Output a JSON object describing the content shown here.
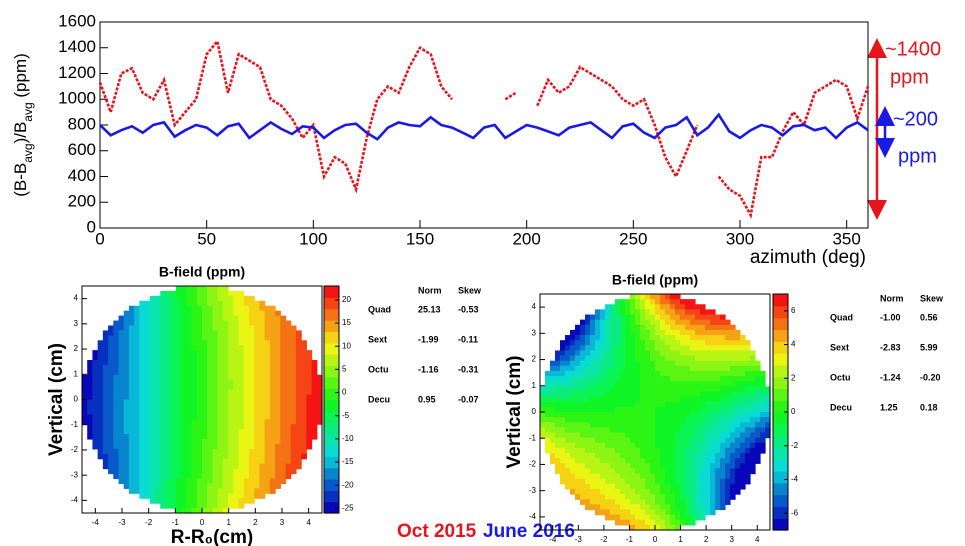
{
  "chart_data": [
    {
      "type": "line",
      "y_label_parts": [
        "(B-B",
        "avg",
        ")/B",
        "avg",
        " (ppm)"
      ],
      "x_label": "azimuth (deg)",
      "x": [
        0,
        5,
        10,
        15,
        20,
        25,
        30,
        35,
        40,
        45,
        50,
        55,
        60,
        65,
        70,
        75,
        80,
        85,
        90,
        95,
        100,
        105,
        110,
        115,
        120,
        125,
        130,
        135,
        140,
        145,
        150,
        155,
        160,
        165,
        170,
        175,
        180,
        185,
        190,
        195,
        200,
        205,
        210,
        215,
        220,
        225,
        230,
        235,
        240,
        245,
        250,
        255,
        260,
        265,
        270,
        275,
        280,
        285,
        290,
        295,
        300,
        305,
        310,
        315,
        320,
        325,
        330,
        335,
        340,
        345,
        350,
        355,
        360
      ],
      "xlim": [
        0,
        360
      ],
      "xticks": [
        0,
        50,
        100,
        150,
        200,
        250,
        300,
        350
      ],
      "ylim": [
        0,
        1600
      ],
      "yticks": [
        0,
        200,
        400,
        600,
        800,
        1000,
        1200,
        1400,
        1600
      ],
      "series": [
        {
          "name": "Oct 2015",
          "color": "#e8141c",
          "values": [
            1130,
            900,
            1200,
            1240,
            1050,
            1000,
            1150,
            800,
            900,
            1000,
            1350,
            1450,
            1050,
            1350,
            1300,
            1250,
            1000,
            950,
            850,
            700,
            800,
            400,
            550,
            500,
            300,
            700,
            1000,
            1100,
            1050,
            1250,
            1400,
            1350,
            1100,
            1000,
            null,
            null,
            null,
            null,
            1000,
            1050,
            null,
            950,
            1150,
            1050,
            1100,
            1250,
            1200,
            1150,
            1100,
            1000,
            950,
            1000,
            800,
            550,
            400,
            600,
            800,
            null,
            400,
            300,
            250,
            100,
            550,
            550,
            750,
            900,
            800,
            1050,
            1100,
            1150,
            1100,
            850,
            1100
          ]
        },
        {
          "name": "June 2016",
          "color": "#1a1ae6",
          "values": [
            800,
            720,
            760,
            790,
            740,
            800,
            820,
            710,
            760,
            800,
            780,
            720,
            790,
            810,
            700,
            760,
            820,
            770,
            730,
            790,
            780,
            700,
            760,
            800,
            810,
            740,
            690,
            780,
            820,
            800,
            790,
            860,
            800,
            780,
            740,
            700,
            780,
            800,
            700,
            750,
            800,
            780,
            750,
            720,
            780,
            800,
            820,
            760,
            700,
            790,
            810,
            740,
            700,
            780,
            800,
            860,
            720,
            780,
            880,
            750,
            700,
            760,
            800,
            780,
            720,
            790,
            800,
            760,
            780,
            700,
            780,
            820,
            760
          ]
        }
      ],
      "annotations": [
        "~1400",
        "ppm",
        "~200",
        "ppm"
      ]
    },
    {
      "type": "contour",
      "title": "B-field (ppm)",
      "x_label": "R-R₀(cm)",
      "y_label": "Vertical (cm)",
      "xlim": [
        -4.5,
        4.5
      ],
      "ylim": [
        -4.5,
        4.5
      ],
      "xticks": [
        -4,
        -3,
        -2,
        -1,
        0,
        1,
        2,
        3,
        4
      ],
      "yticks": [
        -4,
        -3,
        -2,
        -1,
        0,
        1,
        2,
        3,
        4
      ],
      "zlim": [
        -26,
        23
      ],
      "zticks": [
        -25,
        -20,
        -15,
        -10,
        -5,
        0,
        5,
        10,
        15,
        20
      ],
      "columns": [
        "Norm",
        "Skew"
      ],
      "rows": [
        {
          "name": "Quad",
          "values": [
            25.13,
            -0.53
          ]
        },
        {
          "name": "Sext",
          "values": [
            -1.99,
            -0.11
          ]
        },
        {
          "name": "Octu",
          "values": [
            -1.16,
            -0.31
          ]
        },
        {
          "name": "Decu",
          "values": [
            0.95,
            -0.07
          ]
        }
      ]
    },
    {
      "type": "contour",
      "title": "B-field (ppm)",
      "x_label": "R-R₀(cm)",
      "y_label": "Vertical (cm)",
      "xlim": [
        -4.5,
        4.5
      ],
      "ylim": [
        -4.5,
        4.5
      ],
      "xticks": [
        -4,
        -3,
        -2,
        -1,
        0,
        1,
        2,
        3,
        4
      ],
      "yticks": [
        -4,
        -3,
        -2,
        -1,
        0,
        1,
        2,
        3,
        4
      ],
      "zlim": [
        -7,
        7
      ],
      "zticks": [
        -6,
        -4,
        -2,
        0,
        2,
        4,
        6
      ],
      "columns": [
        "Norm",
        "Skew"
      ],
      "rows": [
        {
          "name": "Quad",
          "values": [
            {
              "value": -1,
              "label": "-1.00"
            },
            0.56
          ]
        },
        {
          "name": "Sext",
          "values": [
            -2.83,
            5.99
          ]
        },
        {
          "name": "Octu",
          "values": [
            -1.24,
            {
              "value": -0.2,
              "label": "-0.20"
            }
          ]
        },
        {
          "name": "Decu",
          "values": [
            1.25,
            0.18
          ]
        }
      ]
    }
  ]
}
